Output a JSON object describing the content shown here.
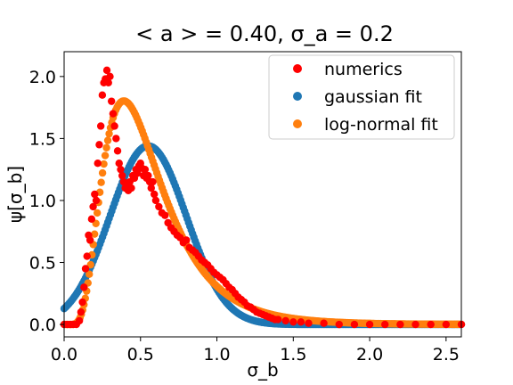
{
  "chart_data": {
    "type": "scatter",
    "title": "< a > = 0.40, σ_a = 0.2",
    "xlabel": "σ_b",
    "ylabel": "ψ[σ_b]",
    "xlim": [
      0.0,
      2.6
    ],
    "ylim": [
      -0.1,
      2.2
    ],
    "xticks": [
      0.0,
      0.5,
      1.0,
      1.5,
      2.0,
      2.5
    ],
    "xtick_labels": [
      "0.0",
      "0.5",
      "1.0",
      "1.5",
      "2.0",
      "2.5"
    ],
    "yticks": [
      0.0,
      0.5,
      1.0,
      1.5,
      2.0
    ],
    "ytick_labels": [
      "0.0",
      "0.5",
      "1.0",
      "1.5",
      "2.0"
    ],
    "grid": false,
    "legend_position": "top-right",
    "series": [
      {
        "name": "numerics",
        "color": "#ff0000",
        "x": [
          0.0,
          0.02,
          0.04,
          0.06,
          0.08,
          0.1,
          0.11,
          0.12,
          0.13,
          0.14,
          0.15,
          0.16,
          0.17,
          0.18,
          0.19,
          0.2,
          0.21,
          0.22,
          0.23,
          0.24,
          0.25,
          0.26,
          0.27,
          0.28,
          0.29,
          0.3,
          0.31,
          0.32,
          0.33,
          0.34,
          0.35,
          0.36,
          0.37,
          0.38,
          0.39,
          0.4,
          0.41,
          0.42,
          0.43,
          0.44,
          0.45,
          0.46,
          0.47,
          0.48,
          0.49,
          0.5,
          0.51,
          0.52,
          0.53,
          0.54,
          0.55,
          0.56,
          0.57,
          0.58,
          0.59,
          0.6,
          0.62,
          0.64,
          0.66,
          0.68,
          0.7,
          0.72,
          0.74,
          0.76,
          0.78,
          0.8,
          0.82,
          0.84,
          0.86,
          0.88,
          0.9,
          0.92,
          0.94,
          0.96,
          0.98,
          1.0,
          1.02,
          1.04,
          1.06,
          1.08,
          1.1,
          1.12,
          1.14,
          1.16,
          1.18,
          1.2,
          1.22,
          1.24,
          1.26,
          1.28,
          1.3,
          1.32,
          1.34,
          1.36,
          1.38,
          1.4,
          1.45,
          1.5,
          1.55,
          1.6,
          1.7,
          1.8,
          1.9,
          2.0,
          2.1,
          2.2,
          2.3,
          2.4,
          2.5,
          2.6
        ],
        "y": [
          0.0,
          0.0,
          0.0,
          0.0,
          0.0,
          0.03,
          0.1,
          0.18,
          0.3,
          0.45,
          0.55,
          0.72,
          0.68,
          0.85,
          0.95,
          1.05,
          1.0,
          1.3,
          1.45,
          1.6,
          1.85,
          1.95,
          1.98,
          2.05,
          1.95,
          2.0,
          1.8,
          1.7,
          1.6,
          1.5,
          1.4,
          1.3,
          1.25,
          1.2,
          1.15,
          1.1,
          1.12,
          1.08,
          1.15,
          1.1,
          1.2,
          1.18,
          1.25,
          1.22,
          1.28,
          1.3,
          1.26,
          1.2,
          1.25,
          1.18,
          1.2,
          1.15,
          1.1,
          1.15,
          1.05,
          1.0,
          0.95,
          0.9,
          0.88,
          0.82,
          0.78,
          0.75,
          0.72,
          0.7,
          0.66,
          0.68,
          0.62,
          0.6,
          0.58,
          0.55,
          0.52,
          0.5,
          0.48,
          0.45,
          0.42,
          0.4,
          0.38,
          0.36,
          0.33,
          0.3,
          0.28,
          0.25,
          0.22,
          0.2,
          0.18,
          0.15,
          0.14,
          0.12,
          0.1,
          0.09,
          0.08,
          0.07,
          0.06,
          0.05,
          0.04,
          0.04,
          0.03,
          0.02,
          0.02,
          0.01,
          0.01,
          0.0,
          0.0,
          0.0,
          0.0,
          0.0,
          0.0,
          0.0,
          0.0,
          0.0
        ]
      },
      {
        "name": "gaussian fit",
        "color": "#1f77b4",
        "model": "gaussian",
        "mean": 0.55,
        "sd": 0.25,
        "peak": 1.44
      },
      {
        "name": "log-normal fit",
        "color": "#ff7f0e",
        "model": "log-normal",
        "mu": -0.69,
        "s": 0.5
      }
    ]
  }
}
